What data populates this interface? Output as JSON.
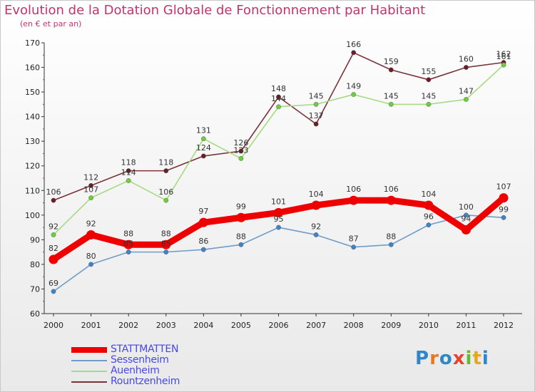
{
  "header": {
    "title": "Evolution de la Dotation Globale de Fonctionnement par Habitant",
    "subtitle": "(en € et par an)"
  },
  "logo": {
    "text": "Proxiti",
    "letter_colors": [
      "#2f86c8",
      "#e87a1e",
      "#2f86c8",
      "#e8432a",
      "#6ab82e",
      "#e8a81e",
      "#2f86c8"
    ]
  },
  "chart_data": {
    "type": "line",
    "title": "Evolution de la Dotation Globale de Fonctionnement par Habitant",
    "subtitle": "(en € et par an)",
    "x": [
      "2000",
      "2001",
      "2002",
      "2003",
      "2004",
      "2005",
      "2006",
      "2007",
      "2008",
      "2009",
      "2010",
      "2011",
      "2012"
    ],
    "ylim": [
      60,
      170
    ],
    "yticks": [
      60,
      70,
      80,
      90,
      100,
      110,
      120,
      130,
      140,
      150,
      160,
      170
    ],
    "grid": false,
    "legend_position": "bottom-left",
    "series": [
      {
        "name": "STATTMATTEN",
        "color": "#ee0000",
        "marker_color": "#ee0000",
        "legend_text_color": "#4848e6",
        "emphasis": true,
        "values": [
          82,
          92,
          88,
          88,
          97,
          99,
          101,
          104,
          106,
          106,
          104,
          94,
          107
        ]
      },
      {
        "name": "Sessenheim",
        "color": "#6f9cc8",
        "marker_color": "#3f82c6",
        "legend_text_color": "#4848e6",
        "emphasis": false,
        "values": [
          69,
          80,
          85,
          85,
          86,
          88,
          95,
          92,
          87,
          88,
          96,
          100,
          99
        ]
      },
      {
        "name": "Auenheim",
        "color": "#a6da80",
        "marker_color": "#6fcc3a",
        "legend_text_color": "#4848e6",
        "emphasis": false,
        "values": [
          92,
          107,
          114,
          106,
          131,
          123,
          144,
          145,
          149,
          145,
          145,
          147,
          161
        ]
      },
      {
        "name": "Rountzenheim",
        "color": "#7a3438",
        "marker_color": "#6a1f24",
        "legend_text_color": "#4848e6",
        "emphasis": false,
        "values": [
          106,
          112,
          118,
          118,
          124,
          126,
          148,
          137,
          166,
          159,
          155,
          160,
          162
        ]
      }
    ]
  }
}
